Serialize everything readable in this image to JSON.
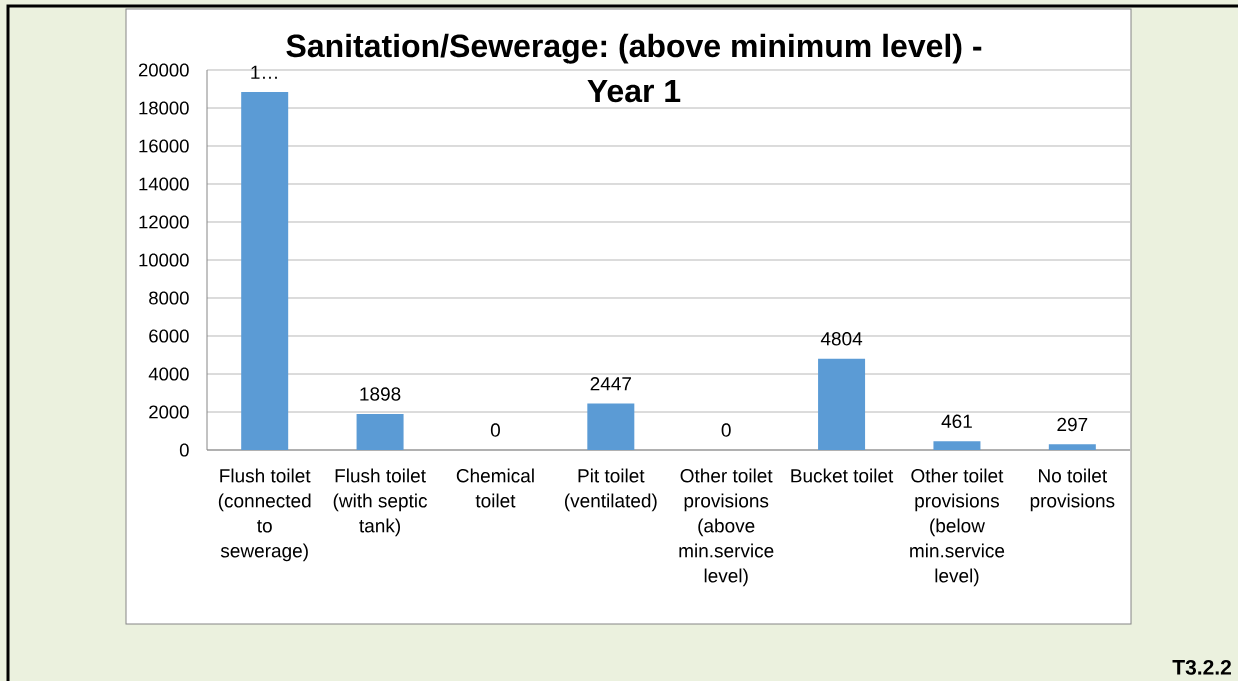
{
  "chart_data": {
    "type": "bar",
    "title": "Sanitation/Sewerage: (above minimum level) - Year 1",
    "categories": [
      "Flush toilet (connected to sewerage)",
      "Flush toilet (with septic tank)",
      "Chemical toilet",
      "Pit toilet (ventilated)",
      "Other toilet provisions (above min.service level)",
      "Bucket toilet",
      "Other toilet provisions (below min.service level)",
      "No toilet provisions"
    ],
    "values": [
      18840,
      1898,
      0,
      2447,
      0,
      4804,
      461,
      297
    ],
    "value_labels": [
      "1…",
      "1898",
      "0",
      "2447",
      "0",
      "4804",
      "461",
      "297"
    ],
    "color": "#5b9bd5",
    "ylim": [
      0,
      20000
    ],
    "yticks": [
      0,
      2000,
      4000,
      6000,
      8000,
      10000,
      12000,
      14000,
      16000,
      18000,
      20000
    ],
    "grid": "y",
    "annotations": [
      "T3.2.2"
    ]
  }
}
